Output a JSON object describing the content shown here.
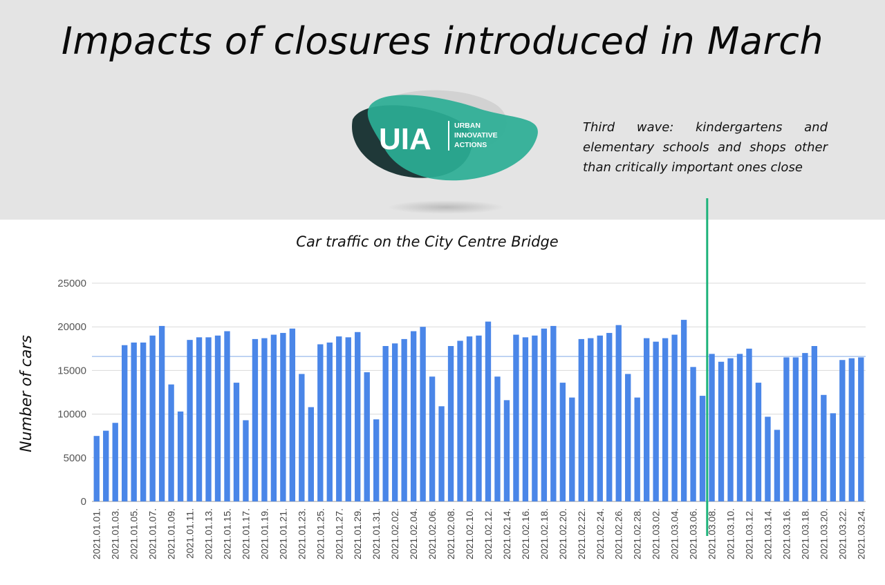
{
  "page": {
    "title": "Impacts of closures introduced in March",
    "annotation": "Third wave: kindergartens and elementary schools and shops other than critically important ones close"
  },
  "logo": {
    "mark": "UIA",
    "line1": "URBAN",
    "line2": "INNOVATIVE",
    "line3": "ACTIONS"
  },
  "colors": {
    "bar": "#4a86e8",
    "marker_line": "#1db37a",
    "avg_line": "#a9c4ef",
    "grid": "#d9d9d9",
    "band": "#e4e4e4",
    "logo_teal": "#2bae95",
    "logo_dark": "#1f3838"
  },
  "chart_data": {
    "type": "bar",
    "title": "Car traffic on the City Centre Bridge",
    "ylabel": "Number of cars",
    "xlabel": "",
    "ylim": [
      0,
      25000
    ],
    "yticks": [
      0,
      5000,
      10000,
      15000,
      20000,
      25000
    ],
    "average_line_value": 16600,
    "marker_after_category": "2021.03.07.",
    "categories": [
      "2021.01.01.",
      "2021.01.02.",
      "2021.01.03.",
      "2021.01.04.",
      "2021.01.05.",
      "2021.01.06.",
      "2021.01.07.",
      "2021.01.08.",
      "2021.01.09.",
      "2021.01.10.",
      "2021.01.11.",
      "2021.01.12.",
      "2021.01.13.",
      "2021.01.14.",
      "2021.01.15.",
      "2021.01.16.",
      "2021.01.17.",
      "2021.01.18.",
      "2021.01.19.",
      "2021.01.20.",
      "2021.01.21.",
      "2021.01.22.",
      "2021.01.23.",
      "2021.01.24.",
      "2021.01.25.",
      "2021.01.26.",
      "2021.01.27.",
      "2021.01.28.",
      "2021.01.29.",
      "2021.01.30.",
      "2021.01.31.",
      "2021.02.01.",
      "2021.02.02.",
      "2021.02.03.",
      "2021.02.04.",
      "2021.02.05.",
      "2021.02.06.",
      "2021.02.07.",
      "2021.02.08.",
      "2021.02.09.",
      "2021.02.10.",
      "2021.02.11.",
      "2021.02.12.",
      "2021.02.13.",
      "2021.02.14.",
      "2021.02.15.",
      "2021.02.16.",
      "2021.02.17.",
      "2021.02.18.",
      "2021.02.19.",
      "2021.02.20.",
      "2021.02.21.",
      "2021.02.22.",
      "2021.02.23.",
      "2021.02.24.",
      "2021.02.25.",
      "2021.02.26.",
      "2021.02.27.",
      "2021.02.28.",
      "2021.03.01.",
      "2021.03.02.",
      "2021.03.03.",
      "2021.03.04.",
      "2021.03.05.",
      "2021.03.06.",
      "2021.03.07.",
      "2021.03.08.",
      "2021.03.09.",
      "2021.03.10.",
      "2021.03.11.",
      "2021.03.12.",
      "2021.03.13.",
      "2021.03.14.",
      "2021.03.15.",
      "2021.03.16.",
      "2021.03.17.",
      "2021.03.18.",
      "2021.03.19.",
      "2021.03.20.",
      "2021.03.21.",
      "2021.03.22.",
      "2021.03.23.",
      "2021.03.24."
    ],
    "visible_tick_labels": [
      "2021.01.01.",
      "2021.01.03.",
      "2021.01.05.",
      "2021.01.07.",
      "2021.01.09.",
      "2021.01.11.",
      "2021.01.13.",
      "2021.01.15.",
      "2021.01.17.",
      "2021.01.19.",
      "2021.01.21.",
      "2021.01.23.",
      "2021.01.25.",
      "2021.01.27.",
      "2021.01.29.",
      "2021.01.31.",
      "2021.02.02.",
      "2021.02.04.",
      "2021.02.06.",
      "2021.02.08.",
      "2021.02.10.",
      "2021.02.12.",
      "2021.02.14.",
      "2021.02.16.",
      "2021.02.18.",
      "2021.02.20.",
      "2021.02.22.",
      "2021.02.24.",
      "2021.02.26.",
      "2021.02.28.",
      "2021.03.02.",
      "2021.03.04.",
      "2021.03.06.",
      "2021.03.08.",
      "2021.03.10.",
      "2021.03.12.",
      "2021.03.14.",
      "2021.03.16.",
      "2021.03.18.",
      "2021.03.20.",
      "2021.03.22.",
      "2021.03.24."
    ],
    "values": [
      7500,
      8100,
      9000,
      17900,
      18200,
      18200,
      19000,
      20100,
      13400,
      10300,
      18500,
      18800,
      18800,
      19000,
      19500,
      13600,
      9300,
      18600,
      18700,
      19100,
      19300,
      19800,
      14600,
      10800,
      18000,
      18200,
      18900,
      18800,
      19400,
      14800,
      9400,
      17800,
      18100,
      18600,
      19500,
      20000,
      14300,
      10900,
      17800,
      18400,
      18900,
      19000,
      20600,
      14300,
      11600,
      19100,
      18800,
      19000,
      19800,
      20100,
      13600,
      11900,
      18600,
      18700,
      19000,
      19300,
      20200,
      14600,
      11900,
      18700,
      18300,
      18700,
      19100,
      20800,
      15400,
      12100,
      16900,
      16000,
      16400,
      16900,
      17500,
      13600,
      9700,
      8200,
      16500,
      16500,
      17000,
      17800,
      12200,
      10100,
      16200,
      16400,
      16500
    ]
  }
}
